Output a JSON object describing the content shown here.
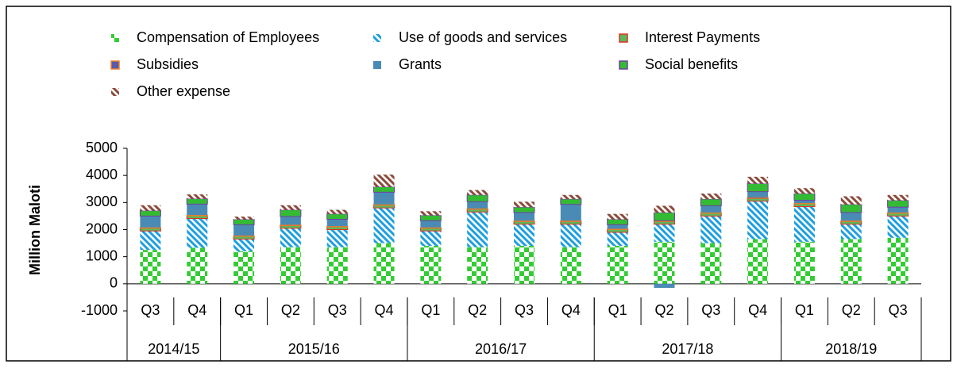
{
  "chart_data": {
    "type": "stacked_bar",
    "ylabel": "Million Maloti",
    "categories": [
      "Q3",
      "Q4",
      "Q1",
      "Q2",
      "Q3",
      "Q4",
      "Q1",
      "Q2",
      "Q3",
      "Q4",
      "Q1",
      "Q2",
      "Q3",
      "Q4",
      "Q1",
      "Q2",
      "Q3"
    ],
    "groups": [
      {
        "label": "2014/15",
        "count": 2
      },
      {
        "label": "2015/16",
        "count": 4
      },
      {
        "label": "2016/17",
        "count": 4
      },
      {
        "label": "2017/18",
        "count": 4
      },
      {
        "label": "2018/19",
        "count": 3
      }
    ],
    "series": [
      {
        "name": "Compensation of Employees",
        "color": "#33cc33",
        "pattern": "checker",
        "values": [
          1250,
          1330,
          1200,
          1350,
          1350,
          1500,
          1400,
          1350,
          1400,
          1350,
          1400,
          1550,
          1500,
          1650,
          1550,
          1650,
          1700
        ]
      },
      {
        "name": "Use of goods and services",
        "color": "#1f9fdf",
        "pattern": "stripes",
        "values": [
          700,
          1080,
          450,
          700,
          650,
          1300,
          550,
          1300,
          800,
          850,
          500,
          650,
          1000,
          1400,
          1300,
          550,
          800
        ]
      },
      {
        "name": "Interest Payments",
        "color": "#5cb85c",
        "edge": "#e03020",
        "pattern": "solid",
        "values": [
          100,
          100,
          100,
          100,
          100,
          100,
          100,
          100,
          100,
          100,
          100,
          100,
          100,
          100,
          100,
          100,
          100
        ]
      },
      {
        "name": "Subsidies",
        "color": "#5a5aa8",
        "edge": "#e8802a",
        "pattern": "solid",
        "values": [
          30,
          30,
          30,
          30,
          30,
          30,
          30,
          30,
          30,
          30,
          30,
          30,
          30,
          50,
          30,
          30,
          30
        ]
      },
      {
        "name": "Grants",
        "color": "#4a8bb5",
        "pattern": "solid",
        "values": [
          420,
          400,
          400,
          300,
          250,
          450,
          250,
          250,
          300,
          600,
          150,
          -150,
          250,
          200,
          100,
          300,
          200
        ]
      },
      {
        "name": "Social benefits",
        "color": "#33bb33",
        "edge": "#7040a0",
        "pattern": "solid",
        "values": [
          200,
          200,
          200,
          250,
          200,
          200,
          200,
          250,
          200,
          200,
          200,
          300,
          250,
          300,
          250,
          300,
          250
        ]
      },
      {
        "name": "Other expense",
        "color": "#8b4b3b",
        "pattern": "stripes",
        "values": [
          200,
          160,
          100,
          170,
          150,
          450,
          150,
          180,
          200,
          150,
          200,
          250,
          200,
          250,
          200,
          300,
          200
        ]
      }
    ],
    "ylim": [
      -1000,
      5000
    ],
    "yticks": [
      -1000,
      0,
      1000,
      2000,
      3000,
      4000,
      5000
    ]
  }
}
